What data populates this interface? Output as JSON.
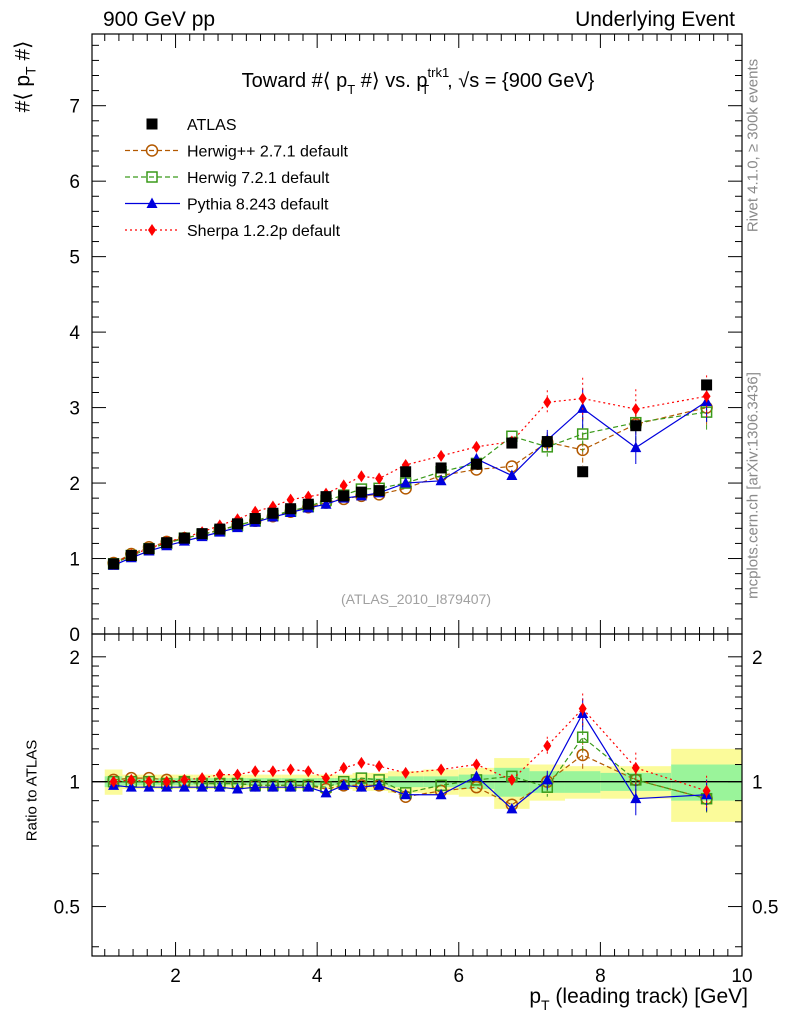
{
  "header": {
    "left": "900 GeV pp",
    "right": "Underlying Event"
  },
  "side_text": {
    "rivet": "Rivet 4.1.0, ≥ 300k events",
    "site": "mcplots.cern.ch [arXiv:1306.3436]"
  },
  "colors": {
    "atlas": "#000000",
    "herwigpp": "#b35900",
    "herwig7": "#3a9a1a",
    "pythia": "#0000dd",
    "sherpa": "#ff0000",
    "band_outer": "#fbfb9a",
    "band_inner": "#9af49a"
  },
  "chart_data": [
    {
      "panel": "main",
      "type": "scatter",
      "title": "Toward #⟨ p_T #⟩ vs. p_T^trk1, √s = {900 GeV}",
      "title_parts": {
        "pre": "Toward #⟨ p",
        "sub1": "T",
        "mid": " #⟩ vs. p",
        "sup2": "trk1",
        "sub2": "T",
        "post": ", √s = {900 GeV}"
      },
      "ylabel": "#⟨ p_T #⟩",
      "ylabel_parts": {
        "pre": "#⟨ p",
        "sub": "T",
        "post": " #⟩"
      },
      "watermark": "(ATLAS_2010_I879407)",
      "xlim": [
        0.82,
        10.0
      ],
      "ylim": [
        0,
        7.95
      ],
      "yticks": [
        0,
        1,
        2,
        3,
        4,
        5,
        6,
        7
      ],
      "x": [
        1.125,
        1.375,
        1.625,
        1.875,
        2.125,
        2.375,
        2.625,
        2.875,
        3.125,
        3.375,
        3.625,
        3.875,
        4.125,
        4.375,
        4.625,
        4.875,
        5.25,
        5.75,
        6.25,
        6.75,
        7.25,
        7.75,
        8.5,
        9.5
      ],
      "series": [
        {
          "name": "ATLAS",
          "key": "atlas",
          "style": "data",
          "values": [
            0.93,
            1.04,
            1.13,
            1.21,
            1.27,
            1.33,
            1.39,
            1.46,
            1.53,
            1.6,
            1.66,
            1.72,
            1.82,
            1.83,
            1.88,
            1.9,
            2.15,
            2.2,
            2.25,
            2.53,
            2.55,
            2.15,
            2.76,
            3.3
          ]
        },
        {
          "name": "Herwig++ 2.7.1 default",
          "key": "herwigpp",
          "style": "circle-dashed",
          "values": [
            0.94,
            1.06,
            1.15,
            1.22,
            1.27,
            1.32,
            1.38,
            1.44,
            1.5,
            1.56,
            1.62,
            1.68,
            1.74,
            1.79,
            1.83,
            1.85,
            1.93,
            2.1,
            2.18,
            2.22,
            2.54,
            2.44,
            2.78,
            3.0
          ]
        },
        {
          "name": "Herwig 7.2.1 default",
          "key": "herwig7",
          "style": "square-dashed",
          "values": [
            0.93,
            1.04,
            1.13,
            1.2,
            1.27,
            1.32,
            1.37,
            1.44,
            1.5,
            1.57,
            1.63,
            1.69,
            1.77,
            1.84,
            1.92,
            1.93,
            2.0,
            2.15,
            2.26,
            2.62,
            2.48,
            2.65,
            2.8,
            2.94
          ]
        },
        {
          "name": "Pythia 8.243 default",
          "key": "pythia",
          "style": "triangle-solid",
          "values": [
            0.91,
            1.01,
            1.1,
            1.17,
            1.23,
            1.29,
            1.35,
            1.41,
            1.48,
            1.55,
            1.61,
            1.67,
            1.72,
            1.8,
            1.83,
            1.87,
            2.0,
            2.03,
            2.32,
            2.1,
            2.57,
            2.99,
            2.47,
            3.08
          ]
        },
        {
          "name": "Sherpa 1.2.2p default",
          "key": "sherpa",
          "style": "diamond-dotted",
          "values": [
            0.93,
            1.05,
            1.13,
            1.22,
            1.28,
            1.35,
            1.44,
            1.52,
            1.62,
            1.69,
            1.78,
            1.82,
            1.86,
            1.97,
            2.09,
            2.06,
            2.24,
            2.36,
            2.48,
            2.55,
            3.07,
            3.12,
            2.98,
            3.15
          ]
        }
      ]
    },
    {
      "panel": "ratio",
      "type": "scatter",
      "ylabel": "Ratio to ATLAS",
      "xlabel": "p_T (leading track) [GeV]",
      "xlabel_parts": {
        "pre": "p",
        "sub": "T",
        "post": " (leading track) [GeV]"
      },
      "xlim": [
        0.82,
        10.0
      ],
      "ylim": [
        0.38,
        2.27
      ],
      "yscale": "log",
      "yticks": [
        0.5,
        1,
        2
      ],
      "ytick_labels": [
        "0.5",
        "1",
        "2"
      ],
      "xticks": [
        2,
        4,
        6,
        8,
        10
      ],
      "xtick_labels": [
        "2",
        "4",
        "6",
        "8",
        "10"
      ],
      "bands": {
        "edges": [
          1.0,
          1.25,
          1.5,
          1.75,
          2.0,
          2.25,
          2.5,
          2.75,
          3.0,
          3.25,
          3.5,
          3.75,
          4.0,
          4.25,
          4.5,
          4.75,
          5.0,
          5.5,
          6.0,
          6.5,
          7.0,
          7.5,
          8.0,
          9.0,
          10.0
        ],
        "inner": [
          0.03,
          0.02,
          0.02,
          0.02,
          0.02,
          0.02,
          0.02,
          0.02,
          0.02,
          0.02,
          0.02,
          0.02,
          0.02,
          0.02,
          0.02,
          0.02,
          0.03,
          0.03,
          0.04,
          0.08,
          0.06,
          0.06,
          0.05,
          0.1
        ],
        "outer": [
          0.07,
          0.04,
          0.04,
          0.04,
          0.04,
          0.04,
          0.04,
          0.04,
          0.04,
          0.04,
          0.04,
          0.04,
          0.04,
          0.04,
          0.05,
          0.05,
          0.06,
          0.07,
          0.08,
          0.14,
          0.1,
          0.09,
          0.09,
          0.2
        ]
      },
      "series": [
        {
          "name": "Herwig++ 2.7.1 default",
          "key": "herwigpp",
          "style": "circle-dashed",
          "values": [
            1.01,
            1.02,
            1.02,
            1.01,
            1.0,
            0.99,
            0.99,
            0.99,
            0.98,
            0.98,
            0.98,
            0.98,
            0.96,
            0.98,
            0.98,
            0.98,
            0.92,
            0.95,
            0.97,
            0.88,
            1.0,
            1.16,
            1.01,
            0.91
          ]
        },
        {
          "name": "Herwig 7.2.1 default",
          "key": "herwig7",
          "style": "square-dashed",
          "values": [
            1.0,
            1.0,
            1.0,
            0.99,
            1.0,
            0.99,
            0.99,
            0.99,
            0.98,
            0.98,
            0.98,
            0.98,
            0.97,
            1.0,
            1.02,
            1.01,
            0.94,
            0.98,
            1.01,
            1.03,
            0.97,
            1.28,
            1.01,
            0.91
          ]
        },
        {
          "name": "Pythia 8.243 default",
          "key": "pythia",
          "style": "triangle-solid",
          "values": [
            0.98,
            0.97,
            0.97,
            0.97,
            0.97,
            0.97,
            0.97,
            0.96,
            0.97,
            0.97,
            0.97,
            0.97,
            0.94,
            0.98,
            0.97,
            0.98,
            0.93,
            0.93,
            1.03,
            0.86,
            1.01,
            1.46,
            0.91,
            0.93
          ]
        },
        {
          "name": "Sherpa 1.2.2p default",
          "key": "sherpa",
          "style": "diamond-dotted",
          "values": [
            1.0,
            1.01,
            1.0,
            1.0,
            1.01,
            1.02,
            1.04,
            1.04,
            1.06,
            1.06,
            1.07,
            1.06,
            1.02,
            1.08,
            1.11,
            1.09,
            1.05,
            1.07,
            1.1,
            1.01,
            1.22,
            1.5,
            1.08,
            0.95
          ]
        }
      ]
    }
  ]
}
